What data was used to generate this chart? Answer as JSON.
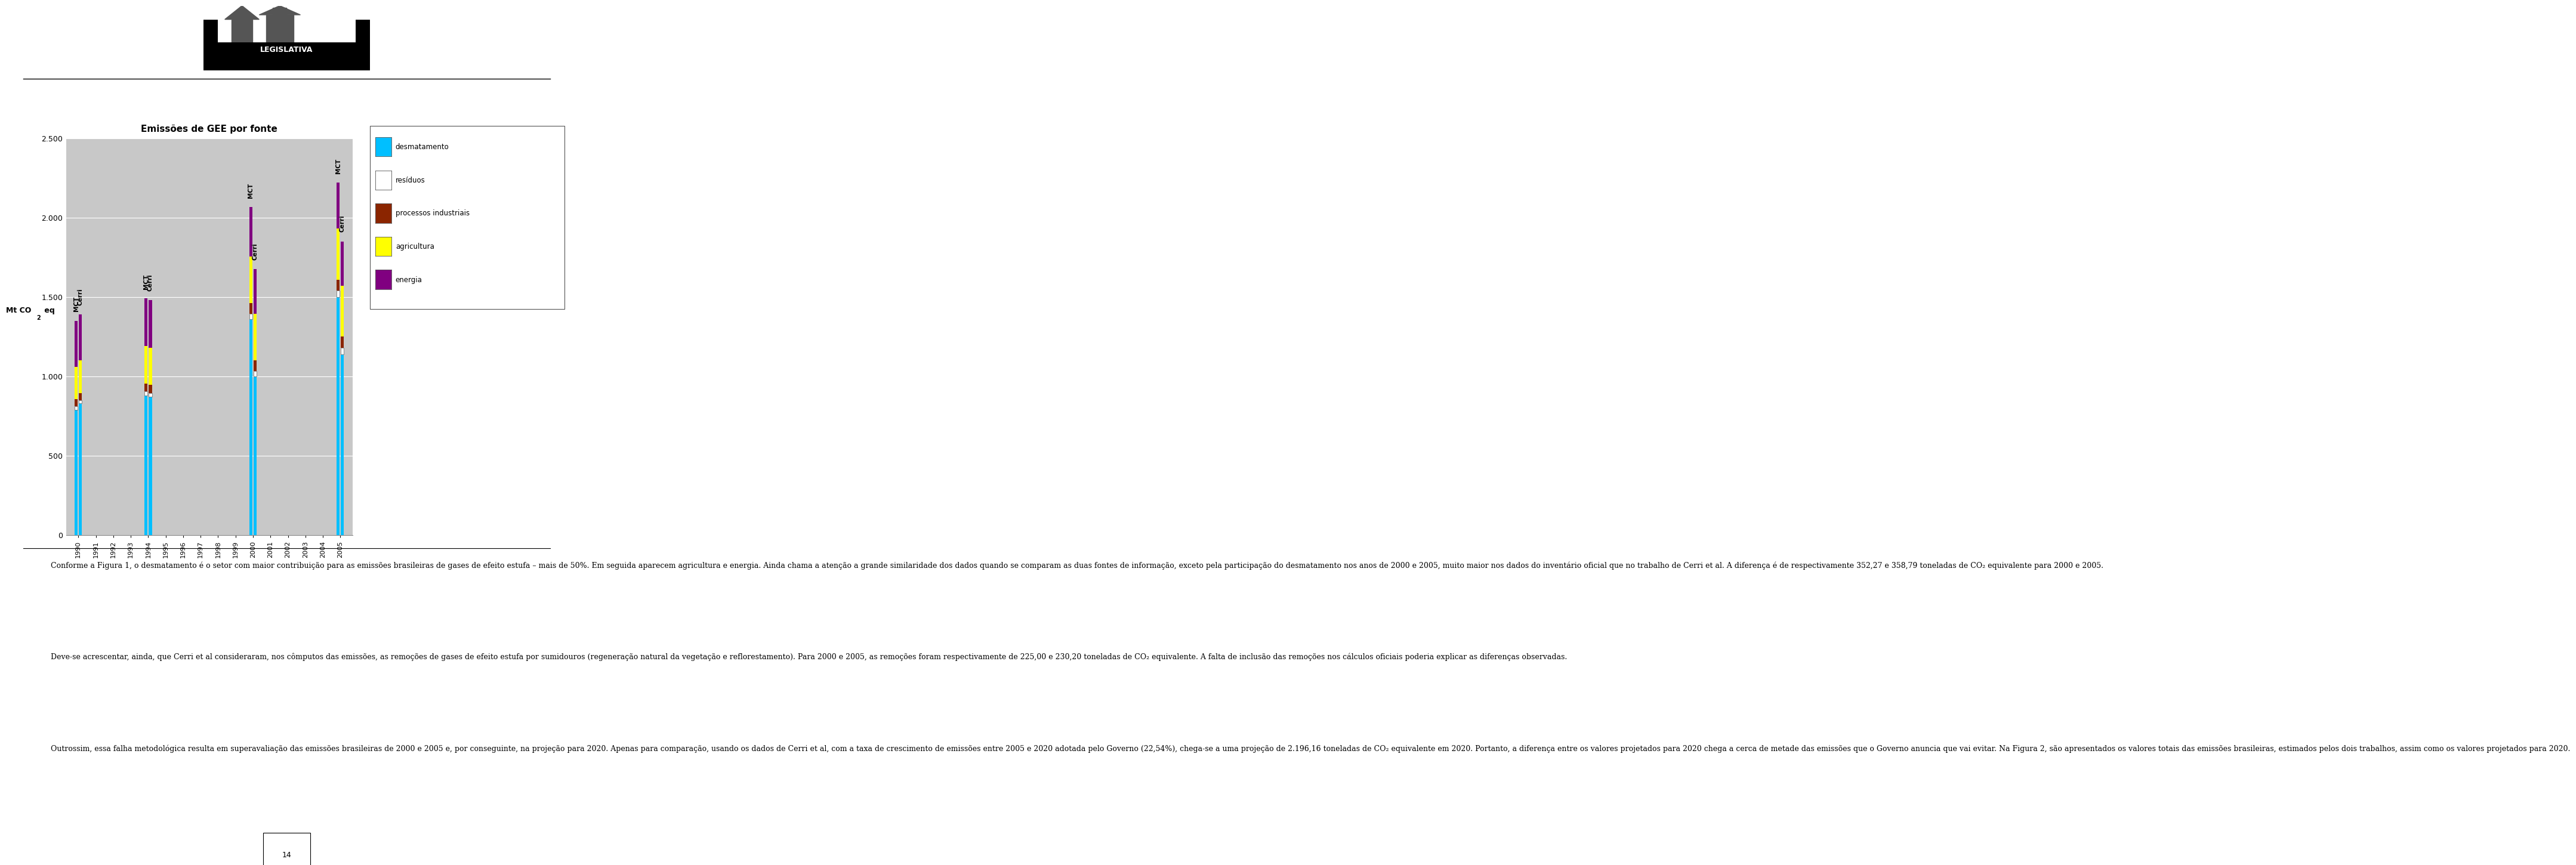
{
  "title": "Emissões de GEE por fonte",
  "ylim": [
    0,
    2500
  ],
  "yticks": [
    0,
    500,
    1000,
    1500,
    2000,
    2500
  ],
  "ytick_labels": [
    "0",
    "500",
    "1.000",
    "1.500",
    "2.000",
    "2.500"
  ],
  "background_color": "#c8c8c8",
  "page_color": "#ffffff",
  "years": [
    "1990",
    "1991",
    "1992",
    "1993",
    "1994",
    "1995",
    "1996",
    "1997",
    "1998",
    "1999",
    "2000",
    "2001",
    "2002",
    "2003",
    "2004",
    "2005"
  ],
  "bar_groups": [
    {
      "year": "1990",
      "year_idx": 0,
      "MCT": {
        "desmatamento": 790,
        "residuos": 20,
        "processos_industriais": 45,
        "agricultura": 205,
        "energia": 290
      },
      "Cerri": {
        "desmatamento": 830,
        "residuos": 20,
        "processos_industriais": 45,
        "agricultura": 205,
        "energia": 290
      }
    },
    {
      "year": "1994",
      "year_idx": 4,
      "MCT": {
        "desmatamento": 880,
        "residuos": 25,
        "processos_industriais": 50,
        "agricultura": 235,
        "energia": 300
      },
      "Cerri": {
        "desmatamento": 870,
        "residuos": 25,
        "processos_industriais": 50,
        "agricultura": 235,
        "energia": 300
      }
    },
    {
      "year": "2000",
      "year_idx": 10,
      "MCT": {
        "desmatamento": 1360,
        "residuos": 35,
        "processos_industriais": 65,
        "agricultura": 295,
        "energia": 310
      },
      "Cerri": {
        "desmatamento": 1000,
        "residuos": 35,
        "processos_industriais": 65,
        "agricultura": 295,
        "energia": 280
      }
    },
    {
      "year": "2005",
      "year_idx": 15,
      "MCT": {
        "desmatamento": 1500,
        "residuos": 40,
        "processos_industriais": 70,
        "agricultura": 320,
        "energia": 290
      },
      "Cerri": {
        "desmatamento": 1140,
        "residuos": 40,
        "processos_industriais": 70,
        "agricultura": 320,
        "energia": 280
      }
    }
  ],
  "colors": {
    "desmatamento": "#00bfff",
    "residuos": "#ffffff",
    "processos_industriais": "#8b2500",
    "agricultura": "#ffff00",
    "energia": "#800080"
  },
  "legend_labels": [
    "desmatamento",
    "resíduos",
    "processos industriais",
    "agricultura",
    "energia"
  ],
  "legend_colors": [
    "#00bfff",
    "#ffffff",
    "#8b2500",
    "#ffff00",
    "#800080"
  ],
  "page_width": 9.6,
  "page_height": 14.62,
  "paragraphs": [
    "        Conforme a Figura 1, o desmatamento é o setor com maior contribuição para as emissões brasileiras de gases de efeito estufa – mais de 50%. Em seguida aparecem agricultura e energia. Ainda chama a atenção a grande similaridade dos dados quando se comparam as duas fontes de informação, exceto pela participação do desmatamento nos anos de 2000 e 2005, muito maior nos dados do inventário oficial que no trabalho de Cerri et al. A diferença é de respectivamente 352,27 e 358,79 toneladas de CO₂ equivalente para 2000 e 2005.",
    "        Deve-se acrescentar, ainda, que Cerri et al consideraram, nos cômputos das emissões, as remoções de gases de efeito estufa por sumidouros (regeneração natural da vegetação e reflorestamento). Para 2000 e 2005, as remoções foram respectivamente de 225,00 e 230,20 toneladas de CO₂ equivalente. A falta de inclusão das remoções nos cálculos oficiais poderia explicar as diferenças observadas.",
    "        Outrossim, essa falha metodológica resulta em superavaliação das emissões brasileiras de 2000 e 2005 e, por conseguinte, na projeção para 2020. Apenas para comparação, usando os dados de Cerri et al, com a taxa de crescimento de emissões entre 2005 e 2020 adotada pelo Governo (22,54%), chega-se a uma projeção de 2.196,16 toneladas de CO₂ equivalente em 2020. Portanto, a diferença entre os valores projetados para 2020 chega a cerca de metade das emissões que o Governo anuncia que vai evitar. Na Figura 2, são apresentados os valores totais das emissões brasileiras, estimados pelos dois trabalhos, assim como os valores projetados para 2020."
  ]
}
